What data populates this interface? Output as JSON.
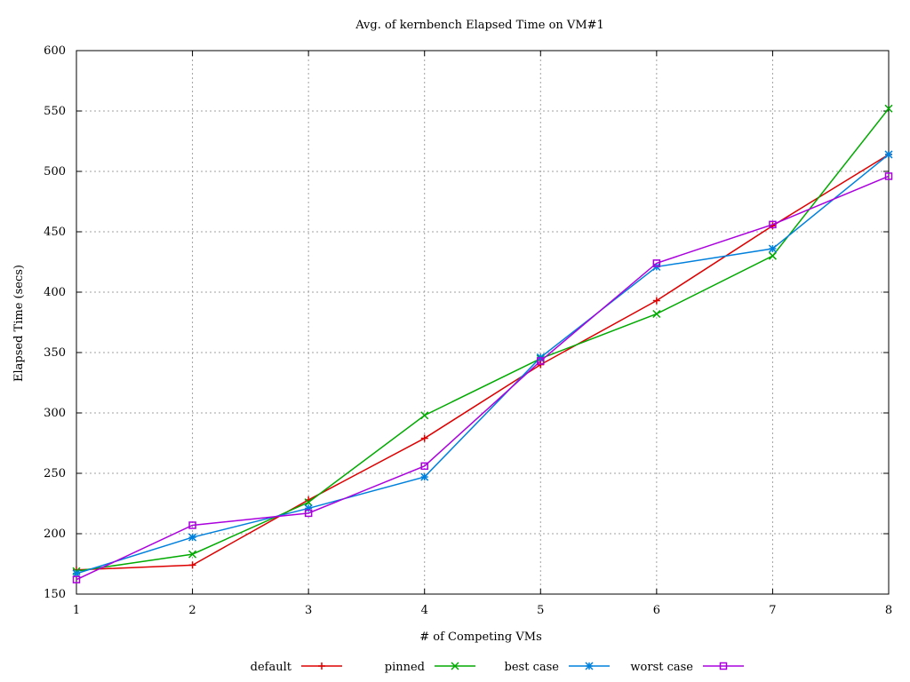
{
  "chart_data": {
    "type": "line",
    "title": "Avg. of kernbench Elapsed Time on VM#1",
    "xlabel": "# of Competing VMs",
    "ylabel": "Elapsed Time (secs)",
    "x": [
      1,
      2,
      3,
      4,
      5,
      6,
      7,
      8
    ],
    "xlim": [
      1,
      8
    ],
    "ylim": [
      150,
      600
    ],
    "xticks": [
      "1",
      "2",
      "3",
      "4",
      "5",
      "6",
      "7",
      "8"
    ],
    "yticks": [
      "150",
      "200",
      "250",
      "300",
      "350",
      "400",
      "450",
      "500",
      "550",
      "600"
    ],
    "grid": true,
    "legend_position": "bottom",
    "series": [
      {
        "name": "default",
        "color": "#dd0000",
        "marker": "plus",
        "values": [
          170,
          174,
          228,
          279,
          340,
          393,
          455,
          514
        ]
      },
      {
        "name": "pinned",
        "color": "#00aa00",
        "marker": "cross",
        "values": [
          169,
          183,
          226,
          298,
          345,
          382,
          430,
          552
        ]
      },
      {
        "name": "best case",
        "color": "#0080dd",
        "marker": "star",
        "values": [
          167,
          197,
          221,
          247,
          346,
          421,
          436,
          514
        ]
      },
      {
        "name": "worst case",
        "color": "#aa00dd",
        "marker": "square",
        "values": [
          162,
          207,
          217,
          256,
          343,
          424,
          456,
          496
        ]
      }
    ]
  }
}
